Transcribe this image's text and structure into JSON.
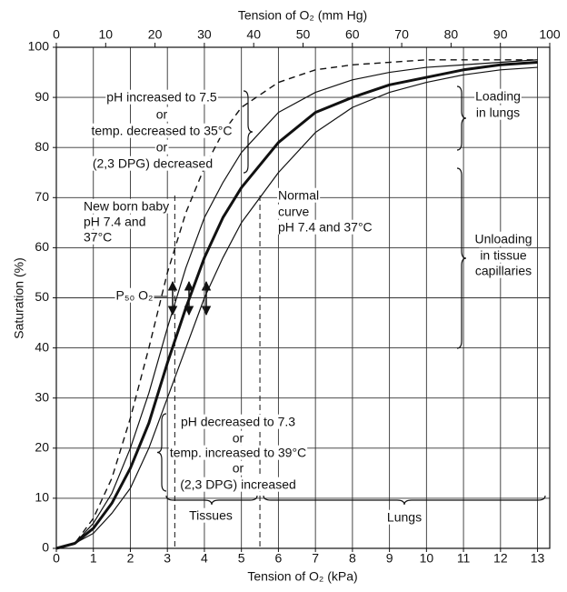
{
  "chart_data": {
    "type": "line",
    "x_label": "Tension of O₂ (kPa)",
    "x2_label": "Tension of O₂ (mm Hg)",
    "y_label": "Saturation (%)",
    "xlim": [
      0,
      13.33
    ],
    "xticks": [
      0,
      1,
      2,
      3,
      4,
      5,
      6,
      7,
      8,
      9,
      10,
      11,
      12,
      13
    ],
    "x2lim": [
      0,
      100
    ],
    "x2ticks": [
      0,
      10,
      20,
      30,
      40,
      50,
      60,
      70,
      80,
      90,
      100
    ],
    "ylim": [
      0,
      100
    ],
    "yticks": [
      0,
      10,
      20,
      30,
      40,
      50,
      60,
      70,
      80,
      90,
      100
    ],
    "grid": true,
    "x": [
      0,
      0.5,
      1,
      1.5,
      2,
      2.5,
      3,
      3.5,
      4,
      4.5,
      5,
      6,
      7,
      8,
      9,
      10,
      11,
      12,
      13
    ],
    "series": [
      {
        "color": "#111111",
        "style": "dashed",
        "linewidth": 1.4,
        "values": [
          0,
          1,
          6,
          14,
          26,
          40,
          55,
          67,
          76,
          83,
          88,
          93,
          95.5,
          96.5,
          97,
          97.5,
          97.5,
          97.5,
          97.5
        ]
      },
      {
        "color": "#111111",
        "style": "solid",
        "linewidth": 1.2,
        "values": [
          0,
          1,
          5,
          11,
          20,
          31,
          44,
          56,
          66,
          73,
          79,
          87,
          91,
          93.5,
          95,
          96,
          96.5,
          97,
          97.5
        ]
      },
      {
        "color": "#111111",
        "style": "solid",
        "linewidth": 3,
        "values": [
          0,
          1,
          4,
          9,
          16,
          25,
          37,
          48,
          58,
          66,
          72,
          81,
          87,
          90,
          92.5,
          94,
          95.5,
          96.5,
          97
        ]
      },
      {
        "color": "#111111",
        "style": "solid",
        "linewidth": 1.2,
        "values": [
          0,
          1,
          3,
          7,
          12,
          20,
          30,
          40,
          50,
          58,
          65,
          75,
          83,
          88,
          91,
          93,
          94.5,
          95.5,
          96
        ]
      }
    ],
    "reference_lines_x": [
      3.2,
      5.5
    ],
    "annotations": [
      "pH increased to 7.5",
      "or",
      "temp. decreased to 35°C",
      "or",
      "(2,3 DPG) decreased",
      "New born baby",
      "pH 7.4 and",
      "37°C",
      "Normal",
      "curve",
      "pH 7.4 and 37°C",
      "Loading",
      "in lungs",
      "Unloading",
      "in tissue",
      "capillaries",
      "P₅₀ O₂",
      "pH decreased to 7.3",
      "or",
      "temp. increased to 39°C",
      "or",
      "(2,3 DPG) increased",
      "Tissues",
      "Lungs"
    ]
  }
}
